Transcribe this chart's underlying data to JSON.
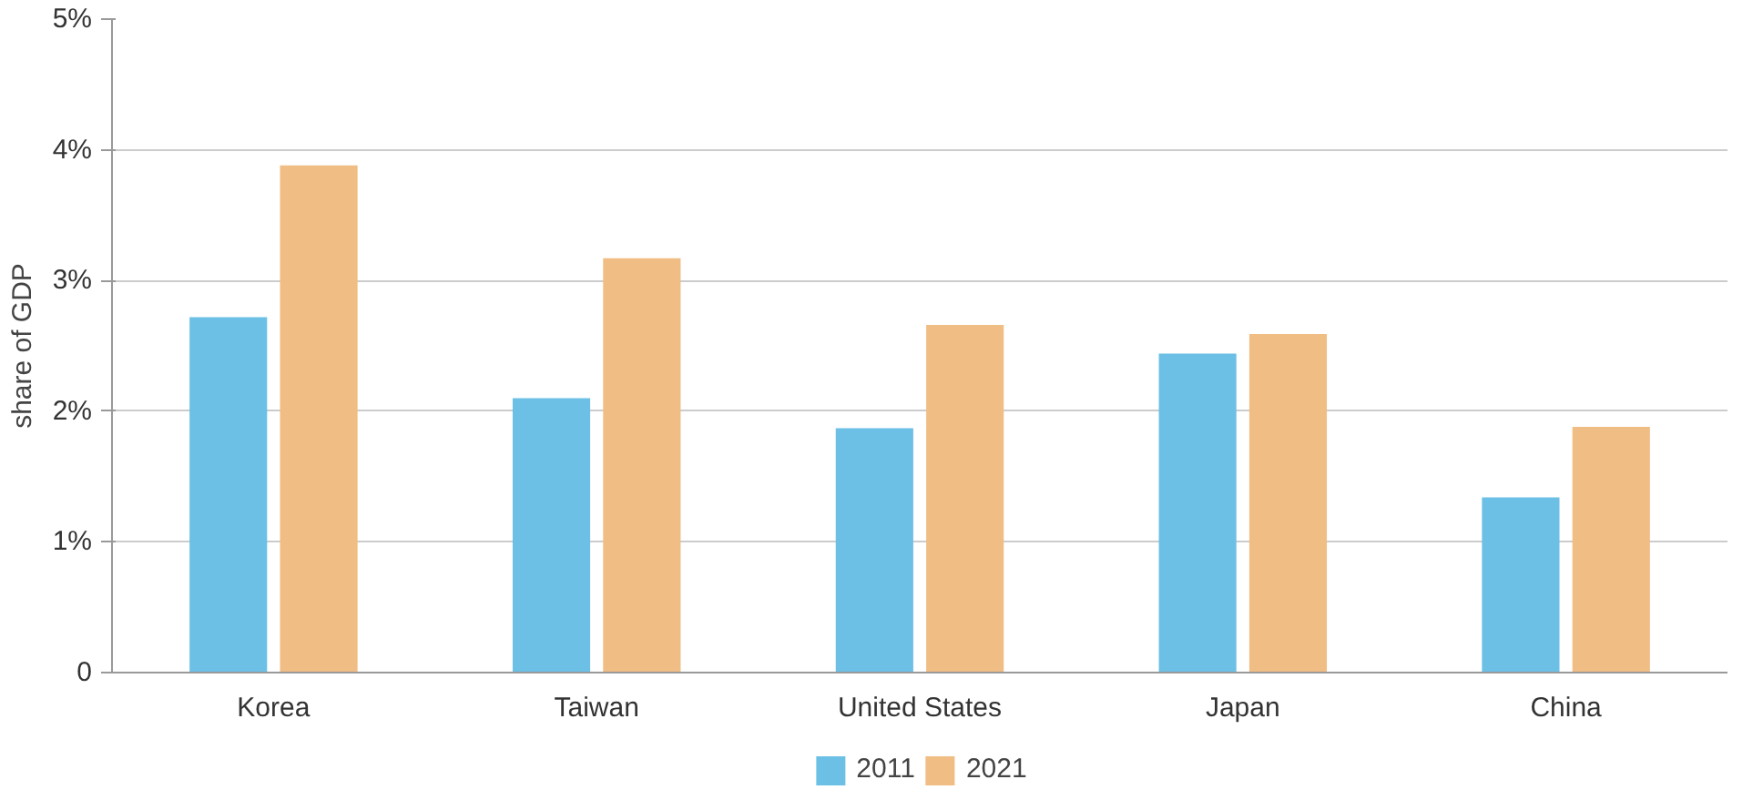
{
  "chart_data": {
    "type": "bar",
    "ylabel": "share of GDP",
    "categories": [
      "Korea",
      "Taiwan",
      "United States",
      "Japan",
      "China"
    ],
    "series": [
      {
        "name": "2011",
        "color": "#6cc0e5",
        "values": [
          2.72,
          2.1,
          1.87,
          2.44,
          1.34
        ]
      },
      {
        "name": "2021",
        "color": "#f0bd84",
        "values": [
          3.88,
          3.17,
          2.66,
          2.59,
          1.88
        ]
      }
    ],
    "ylim": [
      0,
      5
    ],
    "yticks": [
      {
        "value": 0,
        "label": "0"
      },
      {
        "value": 1,
        "label": "1%"
      },
      {
        "value": 2,
        "label": "2%"
      },
      {
        "value": 3,
        "label": "3%"
      },
      {
        "value": 4,
        "label": "4%"
      },
      {
        "value": 5,
        "label": "5%"
      }
    ],
    "grid": "y",
    "legend": "bottom"
  }
}
